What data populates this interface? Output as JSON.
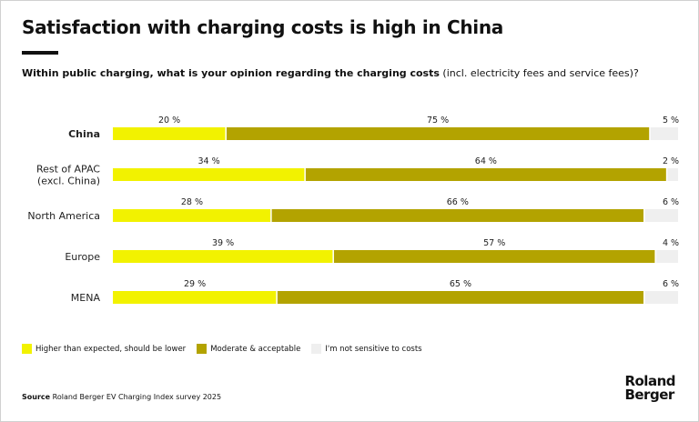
{
  "title": "Satisfaction with charging costs is high in China",
  "subtitle_bold": "Within public charging, what is your opinion regarding the charging costs",
  "subtitle_rest": " (incl. electricity fees and service fees)?",
  "chart_data": {
    "type": "bar",
    "stacked": true,
    "orientation": "horizontal",
    "categories": [
      "China",
      "Rest of APAC\n(excl. China)",
      "North America",
      "Europe",
      "MENA"
    ],
    "highlighted_category": "China",
    "series": [
      {
        "name": "Higher than expected, should be lower",
        "color": "#f2f200",
        "values": [
          20,
          34,
          28,
          39,
          29
        ]
      },
      {
        "name": "Moderate & acceptable",
        "color": "#b3a300",
        "values": [
          75,
          64,
          66,
          57,
          65
        ]
      },
      {
        "name": "I'm not sensitive to costs",
        "color": "#efefef",
        "values": [
          5,
          2,
          6,
          4,
          6
        ]
      }
    ],
    "value_suffix": "%",
    "xlim": [
      0,
      100
    ],
    "grid": false,
    "legend_position": "bottom-left"
  },
  "source_label": "Source",
  "source_text": " Roland Berger EV Charging Index survey 2025",
  "logo": "Roland Berger"
}
